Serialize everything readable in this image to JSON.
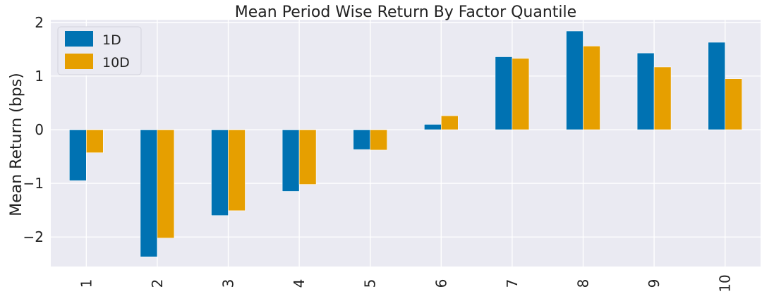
{
  "chart_data": {
    "type": "bar",
    "title": "Mean Period Wise Return By Factor Quantile",
    "xlabel": "",
    "ylabel": "Mean Return (bps)",
    "categories": [
      "1",
      "2",
      "3",
      "4",
      "5",
      "6",
      "7",
      "8",
      "9",
      "10"
    ],
    "series": [
      {
        "name": "1D",
        "color": "#0072b2",
        "values": [
          -0.95,
          -2.37,
          -1.6,
          -1.15,
          -0.37,
          0.1,
          1.36,
          1.84,
          1.43,
          1.63
        ]
      },
      {
        "name": "10D",
        "color": "#e69f00",
        "values": [
          -0.43,
          -2.02,
          -1.51,
          -1.02,
          -0.38,
          0.26,
          1.33,
          1.56,
          1.17,
          0.95
        ]
      }
    ],
    "yticks": [
      2,
      1,
      0,
      -1,
      -2
    ],
    "ytick_labels": [
      "2",
      "1",
      "0",
      "−1",
      "−2"
    ],
    "ylim": [
      -2.55,
      2.05
    ],
    "grid": true,
    "legend_position": "top-left",
    "background_color": "#eaeaf2",
    "grid_color": "#ffffff"
  }
}
